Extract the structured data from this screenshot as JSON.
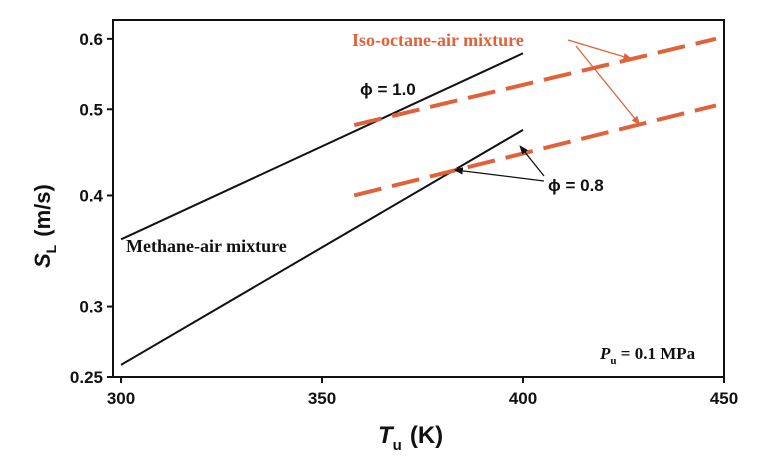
{
  "chart_data": {
    "type": "line",
    "y_scale": "log",
    "xlim": [
      298,
      450
    ],
    "ylim": [
      0.25,
      0.63
    ],
    "x_ticks": [
      300,
      350,
      400,
      450
    ],
    "x_tick_labels": [
      "300",
      "350",
      "400",
      "450"
    ],
    "y_ticks": [
      0.25,
      0.3,
      0.4,
      0.5,
      0.6
    ],
    "y_tick_labels": [
      "0.25",
      "0.3",
      "0.4",
      "0.5",
      "0.6"
    ],
    "xlabel": {
      "main": "T",
      "sub": "u",
      "unit": "(K)"
    },
    "ylabel": {
      "main": "S",
      "sub": "L",
      "unit": "(m/s)"
    },
    "series": [
      {
        "group": "Methane-air mixture",
        "phi": 1.0,
        "style": "solid",
        "color": "#111111",
        "x": [
          300,
          400
        ],
        "y": [
          0.357,
          0.578
        ]
      },
      {
        "group": "Methane-air mixture",
        "phi": 0.8,
        "style": "solid",
        "color": "#111111",
        "x": [
          300,
          400
        ],
        "y": [
          0.258,
          0.474
        ]
      },
      {
        "group": "Iso-octane-air mixture",
        "phi": 1.0,
        "style": "dashed",
        "color": "#e0623a",
        "x": [
          358,
          448
        ],
        "y": [
          0.48,
          0.6
        ]
      },
      {
        "group": "Iso-octane-air mixture",
        "phi": 0.8,
        "style": "dashed",
        "color": "#e0623a",
        "x": [
          358,
          448
        ],
        "y": [
          0.4,
          0.505
        ]
      }
    ],
    "annotations": {
      "iso_octane": "Iso-octane-air mixture",
      "methane": "Methane-air mixture",
      "phi_10": "ϕ = 1.0",
      "phi_08": "ϕ = 0.8",
      "pressure": {
        "main": "P",
        "sub": "u",
        "value": " = 0.1 MPa"
      }
    },
    "colors": {
      "iso_octane": "#e0623a",
      "methane": "#111111"
    },
    "grid": false
  }
}
